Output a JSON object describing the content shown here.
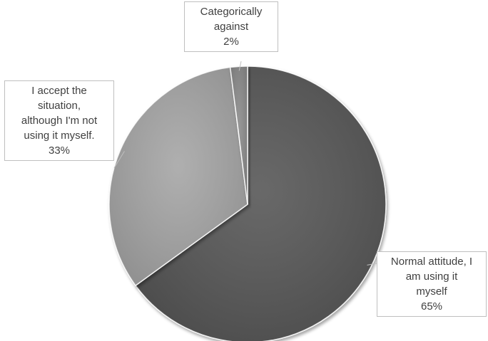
{
  "chart_data": {
    "type": "pie",
    "title": "",
    "slices": [
      {
        "label_lines": [
          "Normal attitude, I",
          "am using it",
          "myself"
        ],
        "value": 65,
        "value_label": "65%",
        "color": "#595959"
      },
      {
        "label_lines": [
          "I accept the",
          "situation,",
          "although I'm not",
          "using it myself."
        ],
        "value": 33,
        "value_label": "33%",
        "color": "#a6a6a6"
      },
      {
        "label_lines": [
          "Categorically",
          "against"
        ],
        "value": 2,
        "value_label": "2%",
        "color": "#8c8c8c"
      }
    ],
    "legend": "none",
    "data_labels": "callouts"
  }
}
